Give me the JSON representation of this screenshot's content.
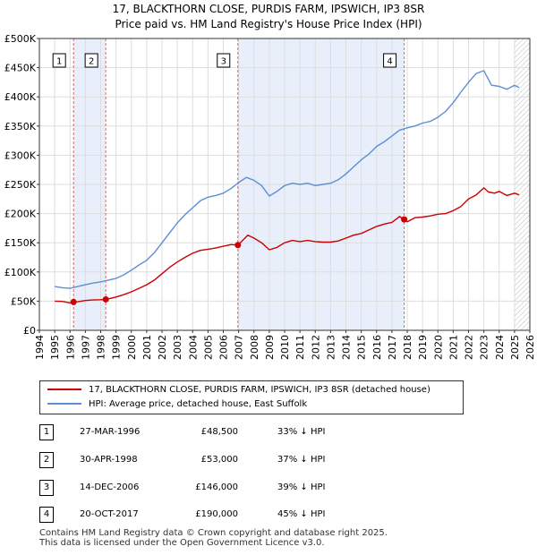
{
  "title_line1": "17, BLACKTHORN CLOSE, PURDIS FARM, IPSWICH, IP3 8SR",
  "title_line2": "Price paid vs. HM Land Registry's House Price Index (HPI)",
  "colors": {
    "property": "#cc0000",
    "hpi": "#5b8fd6",
    "shade": "#e8eefa",
    "vline": "#dd6666",
    "grid": "#dddddd"
  },
  "chart_data": {
    "type": "line",
    "xlabel": "",
    "ylabel": "",
    "xlim": [
      1994,
      2026
    ],
    "ylim": [
      0,
      500000
    ],
    "x_ticks": [
      1994,
      1995,
      1996,
      1997,
      1998,
      1999,
      2000,
      2001,
      2002,
      2003,
      2004,
      2005,
      2006,
      2007,
      2008,
      2009,
      2010,
      2011,
      2012,
      2013,
      2014,
      2015,
      2016,
      2017,
      2018,
      2019,
      2020,
      2021,
      2022,
      2023,
      2024,
      2025,
      2026
    ],
    "y_ticks": [
      {
        "value": 0,
        "label": "£0"
      },
      {
        "value": 50000,
        "label": "£50K"
      },
      {
        "value": 100000,
        "label": "£100K"
      },
      {
        "value": 150000,
        "label": "£150K"
      },
      {
        "value": 200000,
        "label": "£200K"
      },
      {
        "value": 250000,
        "label": "£250K"
      },
      {
        "value": 300000,
        "label": "£300K"
      },
      {
        "value": 350000,
        "label": "£350K"
      },
      {
        "value": 400000,
        "label": "£400K"
      },
      {
        "value": 450000,
        "label": "£450K"
      },
      {
        "value": 500000,
        "label": "£500K"
      }
    ],
    "shaded_ranges": [
      [
        1996.23,
        1998.33
      ],
      [
        2006.95,
        2017.8
      ]
    ],
    "hatched_from": 2025.0,
    "series": [
      {
        "name": "17, BLACKTHORN CLOSE, PURDIS FARM, IPSWICH, IP3 8SR (detached house)",
        "x": [
          1995.0,
          1995.5,
          1996.0,
          1996.23,
          1996.5,
          1997.0,
          1997.5,
          1998.0,
          1998.33,
          1998.7,
          1999.0,
          1999.5,
          2000.0,
          2000.5,
          2001.0,
          2001.5,
          2002.0,
          2002.5,
          2003.0,
          2003.5,
          2004.0,
          2004.5,
          2005.0,
          2005.5,
          2006.0,
          2006.5,
          2006.95,
          2007.3,
          2007.6,
          2008.0,
          2008.5,
          2009.0,
          2009.5,
          2010.0,
          2010.5,
          2011.0,
          2011.5,
          2012.0,
          2012.5,
          2013.0,
          2013.5,
          2014.0,
          2014.5,
          2015.0,
          2015.5,
          2016.0,
          2016.5,
          2017.0,
          2017.5,
          2017.8,
          2018.0,
          2018.5,
          2019.0,
          2019.5,
          2020.0,
          2020.5,
          2021.0,
          2021.5,
          2022.0,
          2022.5,
          2023.0,
          2023.3,
          2023.7,
          2024.0,
          2024.5,
          2025.0,
          2025.3
        ],
        "y": [
          50000,
          49500,
          47000,
          48500,
          49000,
          51000,
          52000,
          52500,
          53000,
          55000,
          57000,
          61000,
          66000,
          72000,
          78000,
          86000,
          97000,
          108000,
          117000,
          125000,
          132000,
          137000,
          139000,
          141000,
          144000,
          147000,
          146000,
          155000,
          163000,
          158000,
          150000,
          138000,
          142000,
          150000,
          154000,
          152000,
          154000,
          152000,
          151000,
          151000,
          153000,
          158000,
          163000,
          166000,
          172000,
          178000,
          182000,
          185000,
          195000,
          190000,
          186000,
          193000,
          194000,
          196000,
          199000,
          200000,
          205000,
          212000,
          225000,
          232000,
          244000,
          237000,
          235000,
          238000,
          231000,
          235000,
          232000
        ]
      },
      {
        "name": "HPI: Average price, detached house, East Suffolk",
        "x": [
          1995.0,
          1995.5,
          1996.0,
          1996.5,
          1997.0,
          1997.5,
          1998.0,
          1998.5,
          1999.0,
          1999.5,
          2000.0,
          2000.5,
          2001.0,
          2001.5,
          2002.0,
          2002.5,
          2003.0,
          2003.5,
          2004.0,
          2004.5,
          2005.0,
          2005.5,
          2006.0,
          2006.5,
          2007.0,
          2007.5,
          2008.0,
          2008.5,
          2009.0,
          2009.5,
          2010.0,
          2010.5,
          2011.0,
          2011.5,
          2012.0,
          2012.5,
          2013.0,
          2013.5,
          2014.0,
          2014.5,
          2015.0,
          2015.5,
          2016.0,
          2016.5,
          2017.0,
          2017.5,
          2018.0,
          2018.5,
          2019.0,
          2019.5,
          2020.0,
          2020.5,
          2021.0,
          2021.5,
          2022.0,
          2022.5,
          2023.0,
          2023.5,
          2024.0,
          2024.5,
          2025.0,
          2025.3
        ],
        "y": [
          75000,
          73000,
          72000,
          75000,
          78000,
          81000,
          83000,
          86000,
          89000,
          95000,
          103000,
          112000,
          120000,
          133000,
          150000,
          167000,
          184000,
          198000,
          210000,
          222000,
          228000,
          231000,
          235000,
          243000,
          253000,
          262000,
          257000,
          248000,
          230000,
          238000,
          248000,
          252000,
          250000,
          252000,
          248000,
          250000,
          252000,
          258000,
          268000,
          280000,
          292000,
          302000,
          315000,
          323000,
          333000,
          343000,
          347000,
          350000,
          355000,
          358000,
          365000,
          375000,
          390000,
          408000,
          425000,
          440000,
          445000,
          420000,
          418000,
          413000,
          420000,
          416000
        ]
      }
    ],
    "sales": [
      {
        "num": "1",
        "x": 1996.23,
        "y": 48500,
        "date": "27-MAR-1996",
        "price": "£48,500",
        "hpi": "33% ↓ HPI"
      },
      {
        "num": "2",
        "x": 1998.33,
        "y": 53000,
        "date": "30-APR-1998",
        "price": "£53,000",
        "hpi": "37% ↓ HPI"
      },
      {
        "num": "3",
        "x": 2006.95,
        "y": 146000,
        "date": "14-DEC-2006",
        "price": "£146,000",
        "hpi": "39% ↓ HPI"
      },
      {
        "num": "4",
        "x": 2017.8,
        "y": 190000,
        "date": "20-OCT-2017",
        "price": "£190,000",
        "hpi": "45% ↓ HPI"
      }
    ]
  },
  "legend": {
    "property": "17, BLACKTHORN CLOSE, PURDIS FARM, IPSWICH, IP3 8SR (detached house)",
    "hpi": "HPI: Average price, detached house, East Suffolk"
  },
  "footer_line1": "Contains HM Land Registry data © Crown copyright and database right 2025.",
  "footer_line2": "This data is licensed under the Open Government Licence v3.0."
}
